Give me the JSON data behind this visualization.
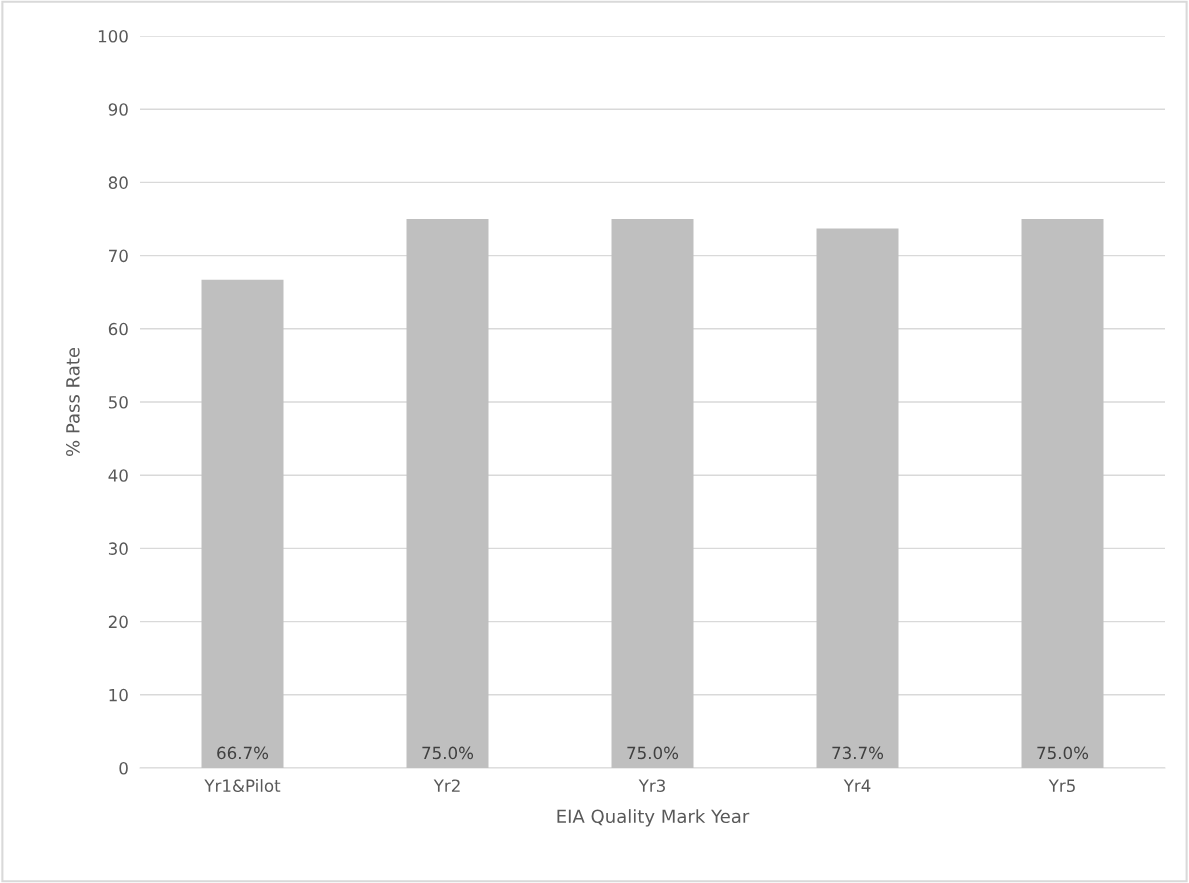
{
  "chart_data": {
    "type": "bar",
    "xlabel": "EIA Quality Mark Year",
    "ylabel": "% Pass Rate",
    "categories": [
      "Yr1&Pilot",
      "Yr2",
      "Yr3",
      "Yr4",
      "Yr5"
    ],
    "values": [
      66.7,
      75.0,
      75.0,
      73.7,
      75.0
    ],
    "value_labels": [
      "66.7%",
      "75.0%",
      "75.0%",
      "73.7%",
      "75.0%"
    ],
    "color": "#bfbfbf",
    "ylim": [
      0,
      100
    ],
    "yticks": [
      0,
      10,
      20,
      30,
      40,
      50,
      60,
      70,
      80,
      90,
      100
    ],
    "grid": "y",
    "legend": false
  }
}
